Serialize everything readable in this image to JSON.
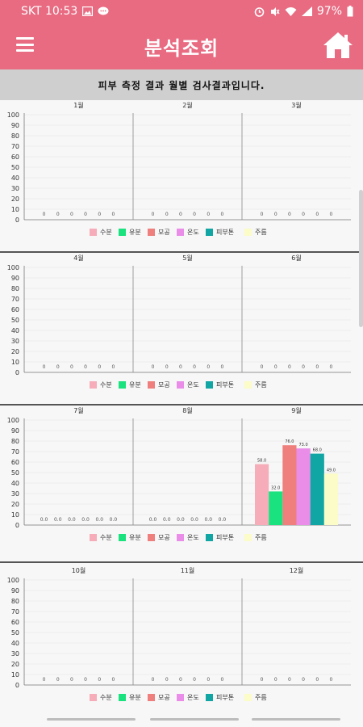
{
  "status_bar": {
    "carrier_time": "SKT 10:53",
    "battery": "97%",
    "icons": [
      "gallery-icon",
      "message-icon",
      "alarm-icon",
      "mute-icon",
      "wifi-icon",
      "signal-icon",
      "battery-icon"
    ]
  },
  "header": {
    "title": "분석조회",
    "menu_icon": "hamburger-menu-icon",
    "home_icon": "home-icon"
  },
  "subtitle": "피부 측정 결과 월별 검사결과입니다.",
  "colors": {
    "appbar": "#e86b82",
    "series": [
      "#f6adb9",
      "#19e27e",
      "#ee7f7c",
      "#e98de9",
      "#11a5a3",
      "#fbfcc7"
    ]
  },
  "chart_data": [
    {
      "type": "bar",
      "months": [
        "1월",
        "2월",
        "3월"
      ],
      "ylim": [
        0,
        100
      ],
      "yticks": [
        "0",
        "10",
        "20",
        "30",
        "40",
        "50",
        "60",
        "70",
        "80",
        "90",
        "100"
      ],
      "legend": [
        "수분",
        "유분",
        "모공",
        "온도",
        "피부톤",
        "주름"
      ],
      "series": [
        {
          "values": [
            0,
            0,
            0
          ],
          "labels": [
            "0",
            "0",
            "0"
          ]
        },
        {
          "values": [
            0,
            0,
            0
          ],
          "labels": [
            "0",
            "0",
            "0"
          ]
        },
        {
          "values": [
            0,
            0,
            0
          ],
          "labels": [
            "0",
            "0",
            "0"
          ]
        },
        {
          "values": [
            0,
            0,
            0
          ],
          "labels": [
            "0",
            "0",
            "0"
          ]
        },
        {
          "values": [
            0,
            0,
            0
          ],
          "labels": [
            "0",
            "0",
            "0"
          ]
        },
        {
          "values": [
            0,
            0,
            0
          ],
          "labels": [
            "0",
            "0",
            "0"
          ]
        }
      ]
    },
    {
      "type": "bar",
      "months": [
        "4월",
        "5월",
        "6월"
      ],
      "ylim": [
        0,
        100
      ],
      "yticks": [
        "0",
        "10",
        "20",
        "30",
        "40",
        "50",
        "60",
        "70",
        "80",
        "90",
        "100"
      ],
      "legend": [
        "수분",
        "유분",
        "모공",
        "온도",
        "피부톤",
        "주름"
      ],
      "series": [
        {
          "values": [
            0,
            0,
            0
          ],
          "labels": [
            "0",
            "0",
            "0"
          ]
        },
        {
          "values": [
            0,
            0,
            0
          ],
          "labels": [
            "0",
            "0",
            "0"
          ]
        },
        {
          "values": [
            0,
            0,
            0
          ],
          "labels": [
            "0",
            "0",
            "0"
          ]
        },
        {
          "values": [
            0,
            0,
            0
          ],
          "labels": [
            "0",
            "0",
            "0"
          ]
        },
        {
          "values": [
            0,
            0,
            0
          ],
          "labels": [
            "0",
            "0",
            "0"
          ]
        },
        {
          "values": [
            0,
            0,
            0
          ],
          "labels": [
            "0",
            "0",
            "0"
          ]
        }
      ]
    },
    {
      "type": "bar",
      "months": [
        "7월",
        "8월",
        "9월"
      ],
      "ylim": [
        0,
        100
      ],
      "yticks": [
        "0",
        "10",
        "20",
        "30",
        "40",
        "50",
        "60",
        "70",
        "80",
        "90",
        "100"
      ],
      "legend": [
        "수분",
        "유분",
        "모공",
        "온도",
        "피부톤",
        "주름"
      ],
      "series": [
        {
          "values": [
            0,
            0,
            58
          ],
          "labels": [
            "0.0",
            "0.0",
            "58.0"
          ]
        },
        {
          "values": [
            0,
            0,
            32
          ],
          "labels": [
            "0.0",
            "0.0",
            "32.0"
          ]
        },
        {
          "values": [
            0,
            0,
            76
          ],
          "labels": [
            "0.0",
            "0.0",
            "76.0"
          ]
        },
        {
          "values": [
            0,
            0,
            73
          ],
          "labels": [
            "0.0",
            "0.0",
            "73.0"
          ]
        },
        {
          "values": [
            0,
            0,
            68
          ],
          "labels": [
            "0.0",
            "0.0",
            "68.0"
          ]
        },
        {
          "values": [
            0,
            0,
            49
          ],
          "labels": [
            "0.0",
            "0.0",
            "49.0"
          ]
        }
      ]
    },
    {
      "type": "bar",
      "months": [
        "10월",
        "11월",
        "12월"
      ],
      "ylim": [
        0,
        100
      ],
      "yticks": [
        "0",
        "10",
        "20",
        "30",
        "40",
        "50",
        "60",
        "70",
        "80",
        "90",
        "100"
      ],
      "legend": [
        "수분",
        "유분",
        "모공",
        "온도",
        "피부톤",
        "주름"
      ],
      "series": [
        {
          "values": [
            0,
            0,
            0
          ],
          "labels": [
            "0",
            "0",
            "0"
          ]
        },
        {
          "values": [
            0,
            0,
            0
          ],
          "labels": [
            "0",
            "0",
            "0"
          ]
        },
        {
          "values": [
            0,
            0,
            0
          ],
          "labels": [
            "0",
            "0",
            "0"
          ]
        },
        {
          "values": [
            0,
            0,
            0
          ],
          "labels": [
            "0",
            "0",
            "0"
          ]
        },
        {
          "values": [
            0,
            0,
            0
          ],
          "labels": [
            "0",
            "0",
            "0"
          ]
        },
        {
          "values": [
            0,
            0,
            0
          ],
          "labels": [
            "0",
            "0",
            "0"
          ]
        }
      ]
    }
  ]
}
